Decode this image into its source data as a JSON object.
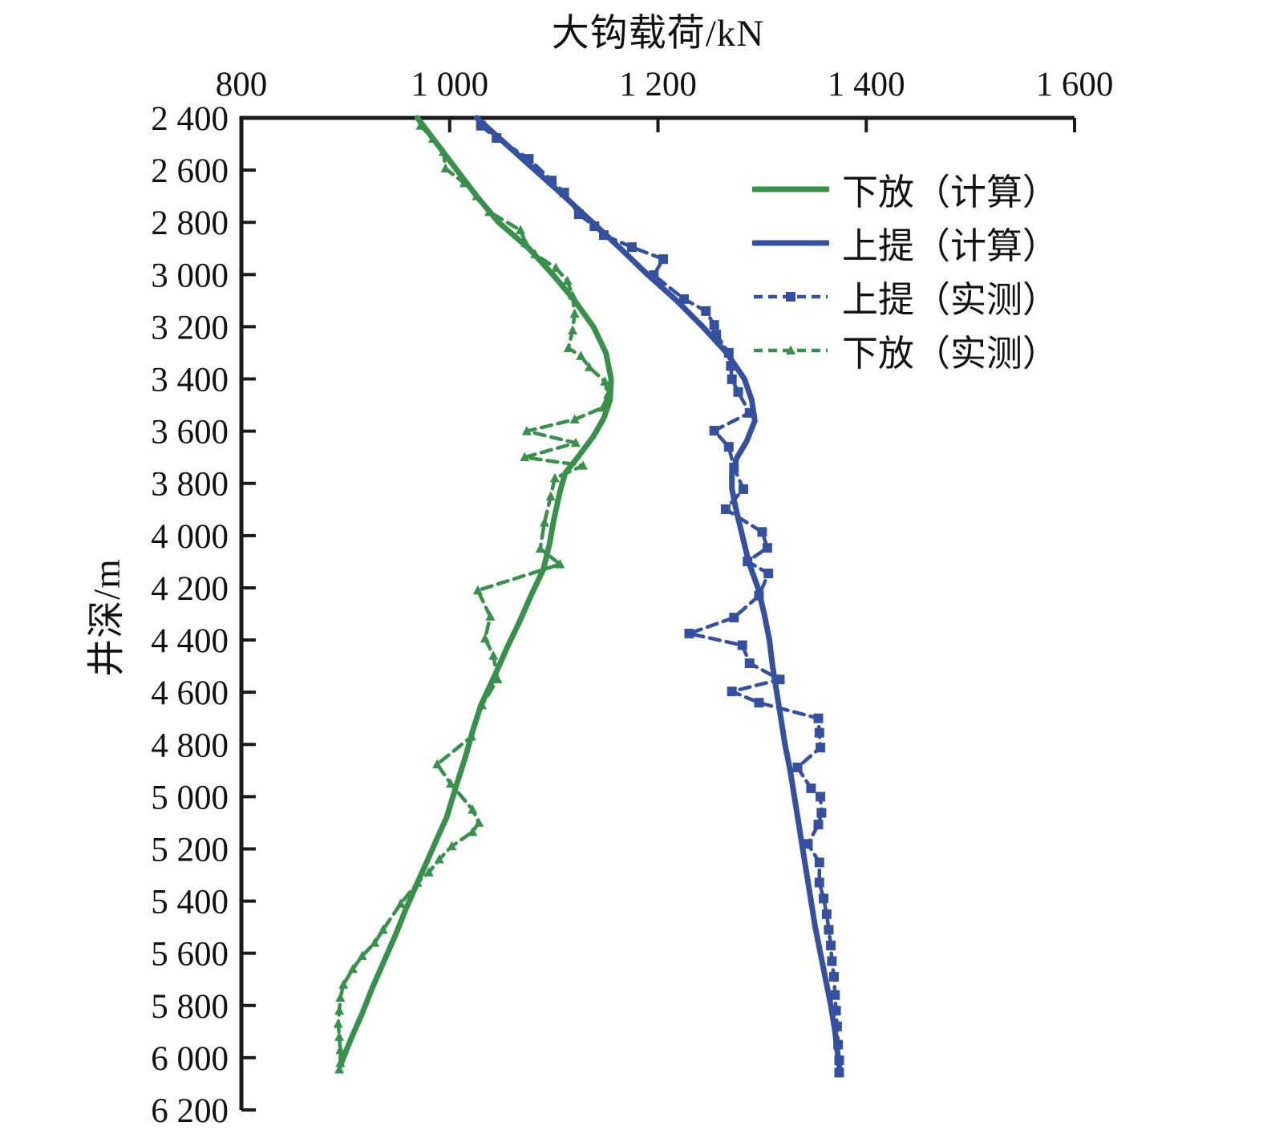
{
  "figure": {
    "kind": "scientific-line-chart",
    "background": "#ffffff"
  },
  "chart_data": {
    "type": "line",
    "title": "大钩载荷/kN",
    "xlabel": "大钩载荷/kN",
    "ylabel": "井深/m",
    "grid": false,
    "legend_position": "upper-right-inside",
    "x_axis": {
      "position": "top",
      "range": [
        800,
        1600
      ],
      "ticks": [
        800,
        1000,
        1200,
        1400,
        1600
      ],
      "tick_labels": [
        "800",
        "1 000",
        "1 200",
        "1 400",
        "1 600"
      ]
    },
    "y_axis": {
      "position": "left",
      "inverted": true,
      "range": [
        2400,
        6200
      ],
      "ticks": [
        2400,
        2600,
        2800,
        3000,
        3200,
        3400,
        3600,
        3800,
        4000,
        4200,
        4400,
        4600,
        4800,
        5000,
        5200,
        5400,
        5600,
        5800,
        6000,
        6200
      ],
      "tick_labels": [
        "2 400",
        "2 600",
        "2 800",
        "3 000",
        "3 200",
        "3 400",
        "3 600",
        "3 800",
        "4 000",
        "4 200",
        "4 400",
        "4 600",
        "4 800",
        "5 000",
        "5 200",
        "5 400",
        "5 600",
        "5 800",
        "6 000",
        "6 200"
      ]
    },
    "colors": {
      "green": "#37914a",
      "blue": "#35509f",
      "axis": "#1a1a1a"
    },
    "series": [
      {
        "name": "下放（计算）",
        "style": "solid",
        "marker": "none",
        "color": "#37914a",
        "points_depth_load": [
          [
            2400,
            969
          ],
          [
            2500,
            988
          ],
          [
            2600,
            1007
          ],
          [
            2700,
            1026
          ],
          [
            2800,
            1047
          ],
          [
            2900,
            1076
          ],
          [
            3000,
            1099
          ],
          [
            3100,
            1120
          ],
          [
            3200,
            1138
          ],
          [
            3300,
            1150
          ],
          [
            3400,
            1155
          ],
          [
            3480,
            1154
          ],
          [
            3550,
            1148
          ],
          [
            3620,
            1138
          ],
          [
            3700,
            1123
          ],
          [
            3760,
            1111
          ],
          [
            3830,
            1106
          ],
          [
            3940,
            1100
          ],
          [
            4030,
            1096
          ],
          [
            4130,
            1090
          ],
          [
            4230,
            1078
          ],
          [
            4330,
            1067
          ],
          [
            4430,
            1055
          ],
          [
            4530,
            1044
          ],
          [
            4650,
            1030
          ],
          [
            4750,
            1022
          ],
          [
            4850,
            1015
          ],
          [
            4950,
            1007
          ],
          [
            5080,
            997
          ],
          [
            5150,
            989
          ],
          [
            5250,
            978
          ],
          [
            5330,
            969
          ],
          [
            5430,
            958
          ],
          [
            5530,
            948
          ],
          [
            5630,
            937
          ],
          [
            5730,
            926
          ],
          [
            5830,
            916
          ],
          [
            5930,
            905
          ],
          [
            6030,
            895
          ]
        ]
      },
      {
        "name": "上提（计算）",
        "style": "solid",
        "marker": "none",
        "color": "#35509f",
        "points_depth_load": [
          [
            2400,
            1026
          ],
          [
            2500,
            1054
          ],
          [
            2600,
            1082
          ],
          [
            2700,
            1110
          ],
          [
            2800,
            1137
          ],
          [
            2900,
            1164
          ],
          [
            3000,
            1190
          ],
          [
            3100,
            1218
          ],
          [
            3200,
            1243
          ],
          [
            3300,
            1266
          ],
          [
            3400,
            1283
          ],
          [
            3480,
            1290
          ],
          [
            3560,
            1293
          ],
          [
            3640,
            1285
          ],
          [
            3700,
            1276
          ],
          [
            3760,
            1271
          ],
          [
            3820,
            1271
          ],
          [
            3900,
            1275
          ],
          [
            4000,
            1281
          ],
          [
            4100,
            1287
          ],
          [
            4200,
            1296
          ],
          [
            4300,
            1302
          ],
          [
            4400,
            1307
          ],
          [
            4500,
            1310
          ],
          [
            4600,
            1314
          ],
          [
            4700,
            1318
          ],
          [
            4800,
            1322
          ],
          [
            4900,
            1327
          ],
          [
            5000,
            1331
          ],
          [
            5100,
            1335
          ],
          [
            5200,
            1339
          ],
          [
            5300,
            1343
          ],
          [
            5400,
            1347
          ],
          [
            5500,
            1351
          ],
          [
            5600,
            1356
          ],
          [
            5700,
            1361
          ],
          [
            5800,
            1366
          ],
          [
            5900,
            1370
          ],
          [
            6000,
            1373
          ],
          [
            6060,
            1375
          ]
        ]
      },
      {
        "name": "上提（实测）",
        "style": "dashed",
        "marker": "square",
        "color": "#35509f",
        "points_depth_load": [
          [
            2430,
            1030
          ],
          [
            2477,
            1045
          ],
          [
            2557,
            1076
          ],
          [
            2640,
            1098
          ],
          [
            2686,
            1110
          ],
          [
            2769,
            1124
          ],
          [
            2815,
            1139
          ],
          [
            2849,
            1148
          ],
          [
            2895,
            1175
          ],
          [
            2941,
            1205
          ],
          [
            3002,
            1196
          ],
          [
            3094,
            1225
          ],
          [
            3140,
            1246
          ],
          [
            3193,
            1254
          ],
          [
            3230,
            1256
          ],
          [
            3300,
            1268
          ],
          [
            3350,
            1270
          ],
          [
            3401,
            1271
          ],
          [
            3450,
            1277
          ],
          [
            3530,
            1288
          ],
          [
            3598,
            1254
          ],
          [
            3660,
            1268
          ],
          [
            3739,
            1273
          ],
          [
            3822,
            1282
          ],
          [
            3899,
            1265
          ],
          [
            3986,
            1300
          ],
          [
            4047,
            1305
          ],
          [
            4099,
            1286
          ],
          [
            4145,
            1306
          ],
          [
            4230,
            1297
          ],
          [
            4314,
            1273
          ],
          [
            4375,
            1230
          ],
          [
            4420,
            1281
          ],
          [
            4489,
            1288
          ],
          [
            4551,
            1317
          ],
          [
            4597,
            1271
          ],
          [
            4640,
            1297
          ],
          [
            4700,
            1354
          ],
          [
            4755,
            1355
          ],
          [
            4812,
            1356
          ],
          [
            4888,
            1334
          ],
          [
            4968,
            1347
          ],
          [
            5000,
            1356
          ],
          [
            5062,
            1357
          ],
          [
            5107,
            1354
          ],
          [
            5181,
            1344
          ],
          [
            5252,
            1355
          ],
          [
            5329,
            1355
          ],
          [
            5390,
            1359
          ],
          [
            5450,
            1362
          ],
          [
            5510,
            1364
          ],
          [
            5570,
            1366
          ],
          [
            5630,
            1367
          ],
          [
            5690,
            1369
          ],
          [
            5760,
            1370
          ],
          [
            5820,
            1371
          ],
          [
            5880,
            1372
          ],
          [
            5950,
            1373
          ],
          [
            6010,
            1374
          ],
          [
            6057,
            1374
          ]
        ]
      },
      {
        "name": "下放（实测）",
        "style": "dashed",
        "marker": "triangle",
        "color": "#37914a",
        "points_depth_load": [
          [
            2430,
            972
          ],
          [
            2480,
            984
          ],
          [
            2530,
            994
          ],
          [
            2594,
            996
          ],
          [
            2650,
            1014
          ],
          [
            2700,
            1026
          ],
          [
            2760,
            1038
          ],
          [
            2830,
            1068
          ],
          [
            2880,
            1073
          ],
          [
            2922,
            1082
          ],
          [
            2975,
            1102
          ],
          [
            3024,
            1113
          ],
          [
            3080,
            1118
          ],
          [
            3150,
            1120
          ],
          [
            3214,
            1118
          ],
          [
            3282,
            1114
          ],
          [
            3312,
            1126
          ],
          [
            3355,
            1134
          ],
          [
            3410,
            1149
          ],
          [
            3460,
            1152
          ],
          [
            3510,
            1147
          ],
          [
            3555,
            1120
          ],
          [
            3600,
            1074
          ],
          [
            3645,
            1121
          ],
          [
            3700,
            1072
          ],
          [
            3732,
            1128
          ],
          [
            3780,
            1101
          ],
          [
            3850,
            1097
          ],
          [
            3950,
            1091
          ],
          [
            4050,
            1087
          ],
          [
            4110,
            1106
          ],
          [
            4210,
            1027
          ],
          [
            4310,
            1039
          ],
          [
            4394,
            1034
          ],
          [
            4460,
            1042
          ],
          [
            4550,
            1046
          ],
          [
            4650,
            1031
          ],
          [
            4770,
            1021
          ],
          [
            4876,
            988
          ],
          [
            4950,
            1001
          ],
          [
            5050,
            1022
          ],
          [
            5100,
            1028
          ],
          [
            5135,
            1022
          ],
          [
            5190,
            1002
          ],
          [
            5240,
            990
          ],
          [
            5290,
            980
          ],
          [
            5330,
            969
          ],
          [
            5410,
            953
          ],
          [
            5510,
            936
          ],
          [
            5560,
            928
          ],
          [
            5610,
            916
          ],
          [
            5660,
            907
          ],
          [
            5720,
            898
          ],
          [
            5770,
            895
          ],
          [
            5820,
            894
          ],
          [
            5870,
            893
          ],
          [
            5920,
            894
          ],
          [
            5970,
            895
          ],
          [
            6020,
            895
          ],
          [
            6045,
            894
          ]
        ]
      }
    ]
  }
}
